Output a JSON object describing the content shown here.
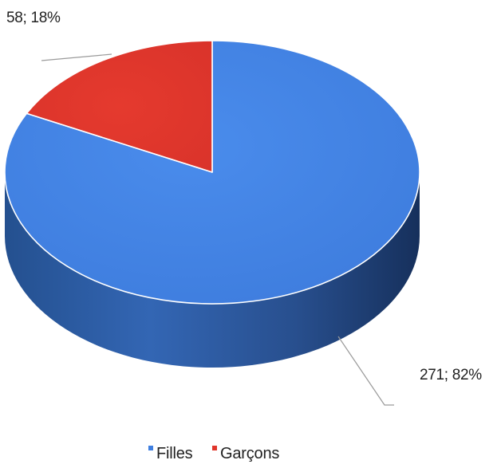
{
  "chart_data": {
    "type": "pie",
    "style": "3d",
    "title": "",
    "categories": [
      "Filles",
      "Garçons"
    ],
    "values": [
      271,
      58
    ],
    "percentages": [
      82,
      18
    ],
    "data_labels": [
      "271; 82%",
      "58; 18%"
    ],
    "colors": [
      "#3f7fe0",
      "#e0352b"
    ],
    "side_colors": [
      "#2a5aa8",
      "#8e2219"
    ],
    "legend": {
      "position": "bottom",
      "entries": [
        "Filles",
        "Garçons"
      ]
    }
  }
}
